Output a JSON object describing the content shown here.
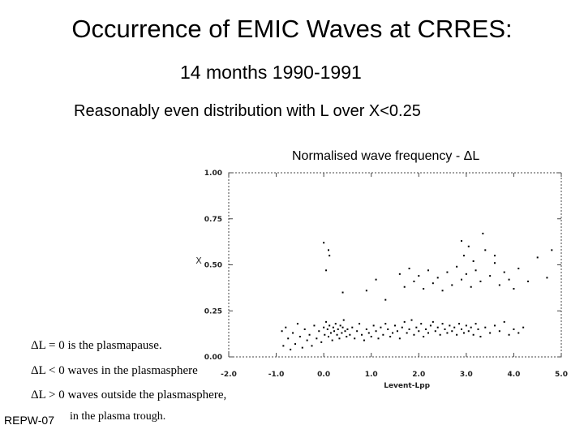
{
  "slide": {
    "title": "Occurrence of EMIC Waves at CRRES:",
    "subtitle": "14 months 1990-1991",
    "subtitle2": "Reasonably even distribution with L over X<0.25",
    "notes": [
      "ΔL = 0 is the plasmapause.",
      "ΔL < 0 waves in the plasmasphere",
      "ΔL > 0 waves outside the plasmasphere,",
      "in the plasma trough."
    ],
    "code": "REPW-07"
  },
  "chart_data": {
    "type": "scatter",
    "title": "Normalised wave frequency - ΔL",
    "xlabel": "Levent-Lpp",
    "ylabel": "X",
    "xlim": [
      -2.0,
      5.0
    ],
    "ylim": [
      0.0,
      1.0
    ],
    "xticks": [
      "-2.0",
      "-1.0",
      "0.0",
      "1.0",
      "2.0",
      "3.0",
      "4.0",
      "5.0"
    ],
    "xtick_values": [
      -2,
      -1,
      0,
      1,
      2,
      3,
      4,
      5
    ],
    "yticks": [
      "0.00",
      "0.25",
      "0.50",
      "0.75",
      "1.00"
    ],
    "ytick_values": [
      0,
      0.25,
      0.5,
      0.75,
      1.0
    ],
    "grid": false,
    "point_color": "#000000",
    "points": [
      [
        -0.88,
        0.14
      ],
      [
        -0.85,
        0.06
      ],
      [
        -0.8,
        0.16
      ],
      [
        -0.75,
        0.1
      ],
      [
        -0.7,
        0.04
      ],
      [
        -0.65,
        0.13
      ],
      [
        -0.6,
        0.07
      ],
      [
        -0.55,
        0.18
      ],
      [
        -0.5,
        0.11
      ],
      [
        -0.45,
        0.05
      ],
      [
        -0.4,
        0.15
      ],
      [
        -0.35,
        0.09
      ],
      [
        -0.3,
        0.12
      ],
      [
        -0.25,
        0.06
      ],
      [
        -0.2,
        0.17
      ],
      [
        -0.15,
        0.1
      ],
      [
        -0.1,
        0.14
      ],
      [
        -0.05,
        0.08
      ],
      [
        0.0,
        0.16
      ],
      [
        0.02,
        0.12
      ],
      [
        0.05,
        0.19
      ],
      [
        0.08,
        0.15
      ],
      [
        0.1,
        0.11
      ],
      [
        0.12,
        0.17
      ],
      [
        0.15,
        0.13
      ],
      [
        0.18,
        0.09
      ],
      [
        0.2,
        0.16
      ],
      [
        0.22,
        0.14
      ],
      [
        0.25,
        0.18
      ],
      [
        0.28,
        0.12
      ],
      [
        0.3,
        0.15
      ],
      [
        0.33,
        0.1
      ],
      [
        0.35,
        0.17
      ],
      [
        0.38,
        0.13
      ],
      [
        0.4,
        0.16
      ],
      [
        0.42,
        0.2
      ],
      [
        0.45,
        0.14
      ],
      [
        0.48,
        0.11
      ],
      [
        0.5,
        0.15
      ],
      [
        0.55,
        0.12
      ],
      [
        0.6,
        0.16
      ],
      [
        0.65,
        0.1
      ],
      [
        0.7,
        0.14
      ],
      [
        0.75,
        0.18
      ],
      [
        0.8,
        0.12
      ],
      [
        0.85,
        0.09
      ],
      [
        0.9,
        0.15
      ],
      [
        0.95,
        0.13
      ],
      [
        1.0,
        0.11
      ],
      [
        1.05,
        0.17
      ],
      [
        1.1,
        0.14
      ],
      [
        1.15,
        0.1
      ],
      [
        1.2,
        0.16
      ],
      [
        1.25,
        0.12
      ],
      [
        1.3,
        0.18
      ],
      [
        1.35,
        0.15
      ],
      [
        1.4,
        0.11
      ],
      [
        1.45,
        0.13
      ],
      [
        1.5,
        0.17
      ],
      [
        1.55,
        0.14
      ],
      [
        1.6,
        0.1
      ],
      [
        1.65,
        0.16
      ],
      [
        1.7,
        0.19
      ],
      [
        1.75,
        0.13
      ],
      [
        1.8,
        0.15
      ],
      [
        1.85,
        0.2
      ],
      [
        1.9,
        0.12
      ],
      [
        1.95,
        0.16
      ],
      [
        2.0,
        0.14
      ],
      [
        2.05,
        0.18
      ],
      [
        2.1,
        0.11
      ],
      [
        2.15,
        0.15
      ],
      [
        2.2,
        0.13
      ],
      [
        2.25,
        0.17
      ],
      [
        2.3,
        0.19
      ],
      [
        2.35,
        0.14
      ],
      [
        2.4,
        0.16
      ],
      [
        2.45,
        0.12
      ],
      [
        2.5,
        0.18
      ],
      [
        2.55,
        0.15
      ],
      [
        2.6,
        0.13
      ],
      [
        2.65,
        0.17
      ],
      [
        2.7,
        0.14
      ],
      [
        2.75,
        0.16
      ],
      [
        2.8,
        0.12
      ],
      [
        2.85,
        0.18
      ],
      [
        2.9,
        0.15
      ],
      [
        2.95,
        0.13
      ],
      [
        3.0,
        0.17
      ],
      [
        3.05,
        0.14
      ],
      [
        3.1,
        0.16
      ],
      [
        3.15,
        0.12
      ],
      [
        3.2,
        0.18
      ],
      [
        3.25,
        0.15
      ],
      [
        3.3,
        0.11
      ],
      [
        3.4,
        0.16
      ],
      [
        3.5,
        0.13
      ],
      [
        3.6,
        0.17
      ],
      [
        3.7,
        0.14
      ],
      [
        3.8,
        0.19
      ],
      [
        3.9,
        0.12
      ],
      [
        4.0,
        0.15
      ],
      [
        4.1,
        0.13
      ],
      [
        4.2,
        0.16
      ],
      [
        0.0,
        0.62
      ],
      [
        0.1,
        0.58
      ],
      [
        0.05,
        0.47
      ],
      [
        0.12,
        0.55
      ],
      [
        0.4,
        0.35
      ],
      [
        0.9,
        0.36
      ],
      [
        1.1,
        0.42
      ],
      [
        1.3,
        0.31
      ],
      [
        1.6,
        0.45
      ],
      [
        1.7,
        0.38
      ],
      [
        1.8,
        0.48
      ],
      [
        1.9,
        0.41
      ],
      [
        2.0,
        0.44
      ],
      [
        2.1,
        0.37
      ],
      [
        2.2,
        0.47
      ],
      [
        2.3,
        0.4
      ],
      [
        2.4,
        0.43
      ],
      [
        2.5,
        0.36
      ],
      [
        2.6,
        0.46
      ],
      [
        2.7,
        0.39
      ],
      [
        2.8,
        0.49
      ],
      [
        2.9,
        0.42
      ],
      [
        2.95,
        0.55
      ],
      [
        3.0,
        0.45
      ],
      [
        3.05,
        0.6
      ],
      [
        3.1,
        0.38
      ],
      [
        3.15,
        0.52
      ],
      [
        3.2,
        0.47
      ],
      [
        3.3,
        0.41
      ],
      [
        3.4,
        0.58
      ],
      [
        3.5,
        0.44
      ],
      [
        3.6,
        0.51
      ],
      [
        3.7,
        0.39
      ],
      [
        3.8,
        0.46
      ],
      [
        3.9,
        0.42
      ],
      [
        4.0,
        0.37
      ],
      [
        2.9,
        0.63
      ],
      [
        3.35,
        0.67
      ],
      [
        3.6,
        0.55
      ],
      [
        4.1,
        0.48
      ],
      [
        4.3,
        0.41
      ],
      [
        4.5,
        0.54
      ],
      [
        4.7,
        0.43
      ],
      [
        4.8,
        0.58
      ]
    ]
  }
}
